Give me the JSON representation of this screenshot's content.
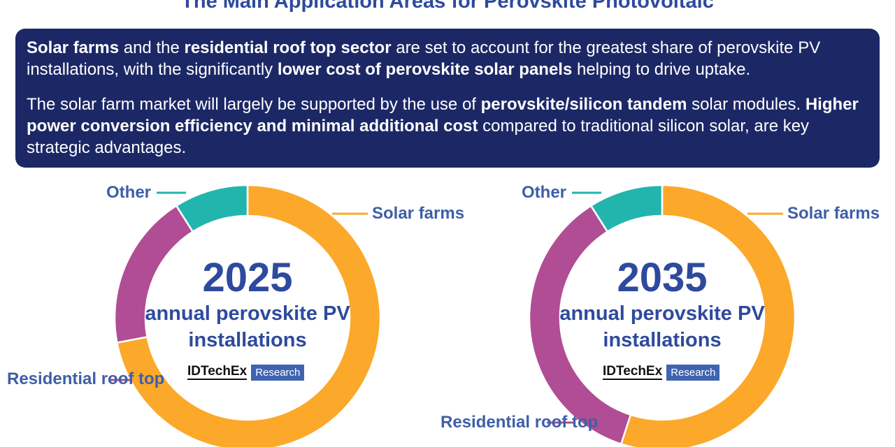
{
  "title": "The Main Application Areas for Perovskite Photovoltaic",
  "info": {
    "para1": [
      {
        "t": "Solar farms",
        "b": true
      },
      {
        "t": " and the ",
        "b": false
      },
      {
        "t": "residential roof top sector",
        "b": true
      },
      {
        "t": " are set to account for the greatest share of perovskite PV installations, with the significantly ",
        "b": false
      },
      {
        "t": "lower cost of perovskite solar panels",
        "b": true
      },
      {
        "t": " helping to drive uptake.",
        "b": false
      }
    ],
    "para2": [
      {
        "t": "The solar farm market will largely be supported by the use of ",
        "b": false
      },
      {
        "t": "perovskite/silicon tandem",
        "b": true
      },
      {
        "t": " solar modules. ",
        "b": false
      },
      {
        "t": "Higher power conversion efficiency and minimal additional cost",
        "b": true
      },
      {
        "t": " compared to traditional silicon solar, are key strategic advantages.",
        "b": false
      }
    ]
  },
  "logo": {
    "name": "IDTechEx",
    "tag": "Research"
  },
  "colors": {
    "solar": "#fca82a",
    "residential": "#b04d94",
    "other": "#22b5ae",
    "title": "#2e4a9e",
    "label": "#3e5fa8"
  },
  "chart_data": [
    {
      "type": "pie",
      "title": "2025",
      "subtitle": "annual perovskite PV installations",
      "slices": [
        {
          "label": "Solar farms",
          "value": 72,
          "color": "#fca82a"
        },
        {
          "label": "Residential roof top",
          "value": 19,
          "color": "#b04d94"
        },
        {
          "label": "Other",
          "value": 9,
          "color": "#22b5ae"
        }
      ]
    },
    {
      "type": "pie",
      "title": "2035",
      "subtitle": "annual perovskite PV installations",
      "slices": [
        {
          "label": "Solar farms",
          "value": 55,
          "color": "#fca82a"
        },
        {
          "label": "Residential roof top",
          "value": 36,
          "color": "#b04d94"
        },
        {
          "label": "Other",
          "value": 9,
          "color": "#22b5ae"
        }
      ]
    }
  ]
}
